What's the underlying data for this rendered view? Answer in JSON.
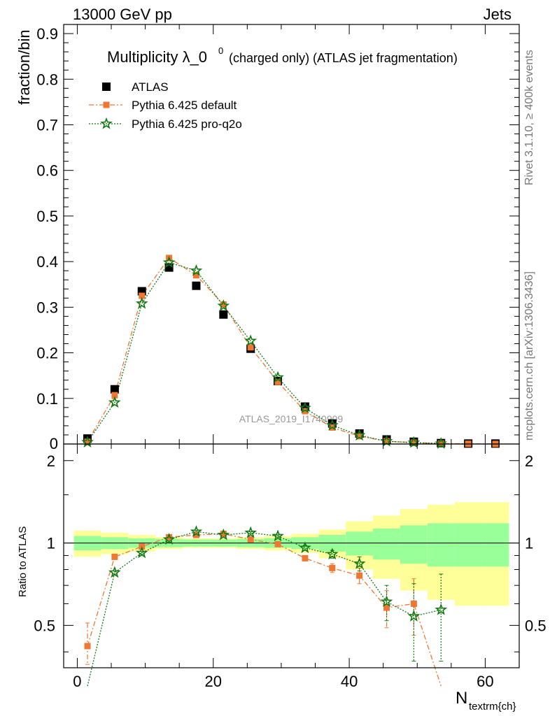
{
  "header": {
    "left": "13000 GeV pp",
    "right": "Jets"
  },
  "side_labels": {
    "rivet": "Rivet 3.1.10, ≥ 400k events",
    "mcplots": "mcplots.cern.ch [arXiv:1306.3436]"
  },
  "chart_data": [
    {
      "type": "scatter",
      "title": "Multiplicity λ_0⁰ (charged only) (ATLAS jet fragmentation)",
      "title_main": "Multiplicity λ_0",
      "title_sup": "0",
      "title_rest": "(charged only) (ATLAS jet fragmentation)",
      "ylabel": "fraction/bin",
      "xlabel": "N",
      "xlabel_sub": "textrm{ch}",
      "watermark": "ATLAS_2019_I1740909",
      "xlim": [
        -2,
        65
      ],
      "ylim": [
        0,
        0.92
      ],
      "x_ticks": [
        0,
        20,
        40,
        60
      ],
      "y_ticks": [
        0.1,
        0.2,
        0.3,
        0.4,
        0.5,
        0.6,
        0.7,
        0.8,
        0.9
      ],
      "y_tick_labels": [
        "0.1",
        "0.2",
        "0.3",
        "0.4",
        "0.5",
        "0.6",
        "0.7",
        "0.8",
        "0.9"
      ],
      "y_zero_label": "0",
      "legend_position": "top-left",
      "series": [
        {
          "name": "ATLAS",
          "color": "#000000",
          "marker": "square",
          "x": [
            1.5,
            5.5,
            9.5,
            13.5,
            17.5,
            21.5,
            25.5,
            29.5,
            33.5,
            37.5,
            41.5,
            45.5,
            49.5,
            53.5,
            57.5,
            61.5
          ],
          "y": [
            0.012,
            0.12,
            0.335,
            0.387,
            0.347,
            0.284,
            0.209,
            0.138,
            0.082,
            0.045,
            0.023,
            0.01,
            0.005,
            0.002,
            0.001,
            0.001
          ]
        },
        {
          "name": "Pythia 6.425 default",
          "color": "#ee7733",
          "marker": "square-small",
          "line": "dashdot",
          "x": [
            1.5,
            5.5,
            9.5,
            13.5,
            17.5,
            21.5,
            25.5,
            29.5,
            33.5,
            37.5,
            41.5,
            45.5,
            49.5,
            53.5,
            57.5,
            61.5
          ],
          "y": [
            0.005,
            0.107,
            0.325,
            0.408,
            0.37,
            0.306,
            0.212,
            0.136,
            0.072,
            0.036,
            0.017,
            0.006,
            0.003,
            0.001,
            0.0005,
            0.0002
          ]
        },
        {
          "name": "Pythia 6.425 pro-q2o",
          "color": "#117711",
          "marker": "star",
          "line": "dotted",
          "x": [
            1.5,
            5.5,
            9.5,
            13.5,
            17.5,
            21.5,
            25.5,
            29.5,
            33.5,
            37.5,
            41.5,
            45.5,
            49.5,
            53.5
          ],
          "y": [
            0.004,
            0.091,
            0.308,
            0.398,
            0.38,
            0.303,
            0.226,
            0.146,
            0.079,
            0.041,
            0.019,
            0.006,
            0.003,
            0.001
          ]
        }
      ]
    },
    {
      "type": "scatter",
      "ylabel": "Ratio to ATLAS",
      "xlim": [
        -2,
        65
      ],
      "ylim": [
        0.35,
        2.3
      ],
      "y_ticks": [
        0.5,
        1,
        2
      ],
      "y_tick_labels": [
        "0.5",
        "1",
        "2"
      ],
      "x_ticks": [
        0,
        20,
        40,
        60
      ],
      "x_tick_labels": [
        "0",
        "20",
        "40",
        "60"
      ],
      "bands": {
        "x_edges": [
          -0.5,
          3.5,
          7.5,
          11.5,
          15.5,
          19.5,
          23.5,
          27.5,
          31.5,
          35.5,
          39.5,
          43.5,
          47.5,
          51.5,
          55.5,
          59.5,
          63.5
        ],
        "inner_color": "#99ff99",
        "outer_color": "#ffff99",
        "inner_half_width": [
          0.06,
          0.05,
          0.04,
          0.035,
          0.03,
          0.03,
          0.035,
          0.04,
          0.05,
          0.07,
          0.1,
          0.13,
          0.16,
          0.18,
          0.18,
          0.18
        ],
        "outer_half_width": [
          0.11,
          0.09,
          0.07,
          0.05,
          0.04,
          0.04,
          0.05,
          0.06,
          0.08,
          0.12,
          0.2,
          0.26,
          0.33,
          0.38,
          0.41,
          0.41
        ]
      },
      "series": [
        {
          "name": "Pythia 6.425 default",
          "color": "#ee7733",
          "marker": "square-small",
          "line": "dashdot",
          "x": [
            1.5,
            5.5,
            9.5,
            13.5,
            17.5,
            21.5,
            25.5,
            29.5,
            33.5,
            37.5,
            41.5,
            45.5,
            49.5,
            53.5
          ],
          "y": [
            0.42,
            0.89,
            0.97,
            1.05,
            1.07,
            1.08,
            1.03,
            0.99,
            0.88,
            0.81,
            0.76,
            0.58,
            0.6,
            0.3
          ],
          "err": [
            0.09,
            0.02,
            0.01,
            0.01,
            0.01,
            0.01,
            0.01,
            0.01,
            0.02,
            0.03,
            0.05,
            0.09,
            0.14,
            0.0
          ]
        },
        {
          "name": "Pythia 6.425 pro-q2o",
          "color": "#117711",
          "marker": "star",
          "line": "dotted",
          "x": [
            1.5,
            5.5,
            9.5,
            13.5,
            17.5,
            21.5,
            25.5,
            29.5,
            33.5,
            37.5,
            41.5,
            45.5,
            49.5,
            53.5
          ],
          "y": [
            0.3,
            0.78,
            0.92,
            1.03,
            1.1,
            1.07,
            1.09,
            1.06,
            0.96,
            0.91,
            0.84,
            0.61,
            0.54,
            0.57
          ],
          "err": [
            0.0,
            0.01,
            0.01,
            0.01,
            0.01,
            0.01,
            0.01,
            0.01,
            0.02,
            0.03,
            0.05,
            0.09,
            0.17,
            0.2
          ]
        }
      ]
    }
  ]
}
